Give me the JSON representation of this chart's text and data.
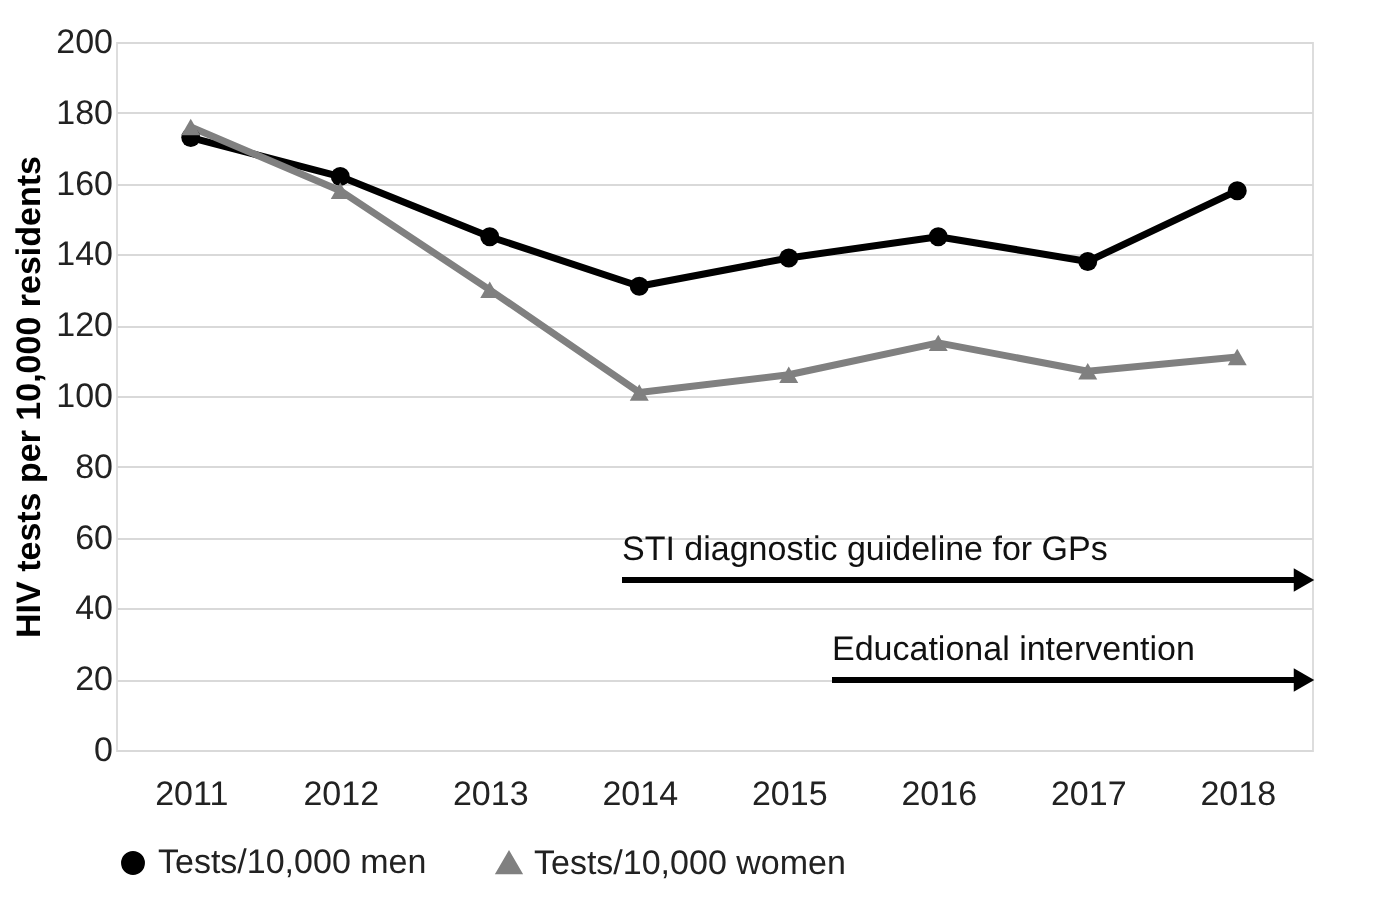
{
  "chart_data": {
    "type": "line",
    "ylabel": "HIV tests per 10,000 residents",
    "categories": [
      "2011",
      "2012",
      "2013",
      "2014",
      "2015",
      "2016",
      "2017",
      "2018"
    ],
    "series": [
      {
        "name": "Tests/10,000 men",
        "color": "#000000",
        "marker": "circle",
        "values": [
          173,
          162,
          145,
          131,
          139,
          145,
          138,
          158
        ]
      },
      {
        "name": "Tests/10,000 women",
        "color": "#808080",
        "marker": "triangle",
        "values": [
          176,
          158,
          130,
          101,
          106,
          115,
          107,
          111
        ]
      }
    ],
    "ylim": [
      0,
      200
    ],
    "yticks": [
      0,
      20,
      40,
      60,
      80,
      100,
      120,
      140,
      160,
      180,
      200
    ],
    "grid": "y",
    "legend": "bottom",
    "line_style": "solid",
    "annotations": [
      "STI diagnostic guideline for GPs",
      "Educational intervention"
    ]
  }
}
